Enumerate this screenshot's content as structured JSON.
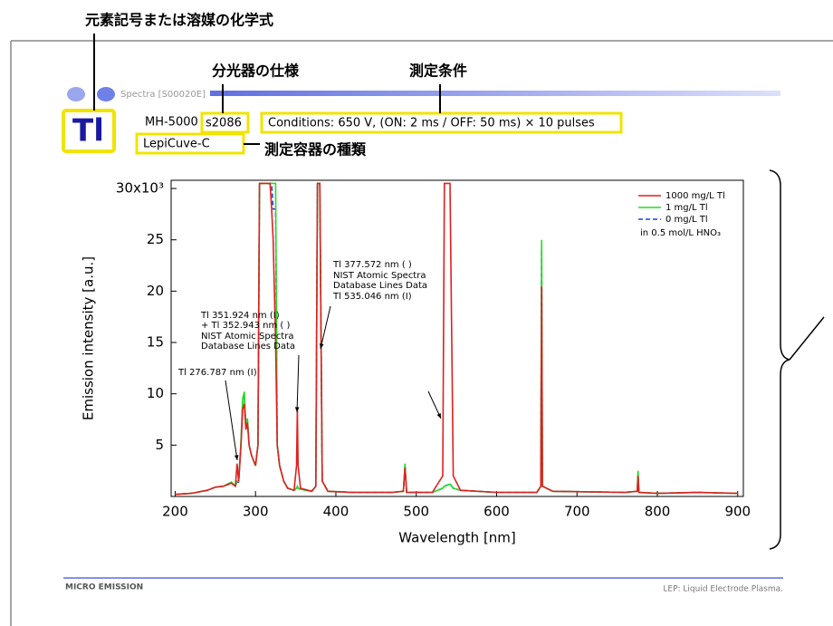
{
  "notes": {
    "element": "元素記号または溶媒の化学式",
    "spectrometer": "分光器の仕様",
    "conditions": "測定条件",
    "container": "測定容器の種類"
  },
  "header": {
    "series_id": "Spectra [S00020E]",
    "element": "Tl",
    "instrument": "MH-5000",
    "spectrometer": "s2086",
    "conditions": "Conditions: 650 V, (ON: 2 ms / OFF: 50 ms) × 10 pulses",
    "container": "LepiCuve-C"
  },
  "footer": {
    "brand": "MICRO EMISSION",
    "note": "LEP: Liquid Electrode Plasma."
  },
  "chart_data": {
    "type": "line",
    "x_label": "Wavelength [nm]",
    "y_label": "Emission intensity [a.u.]",
    "xlim": [
      195,
      907
    ],
    "ylim": [
      0,
      30.8
    ],
    "xticks": [
      200,
      300,
      400,
      500,
      600,
      700,
      800,
      900
    ],
    "yticks": [
      5,
      10,
      15,
      20,
      25,
      {
        "value": 30,
        "label": "30x10³"
      }
    ],
    "legend": "upper right",
    "legend_note": "in 0.5 mol/L HNO₃",
    "annotations": [
      "Tl 276.787 nm (I)",
      "Tl 351.924 nm (I)",
      "+ Tl 352.943 nm ( )",
      "NIST Atomic Spectra",
      "Database Lines Data",
      "Tl 377.572 nm ( )",
      "NIST Atomic Spectra",
      "Database Lines Data",
      "Tl 535.046 nm (I)"
    ],
    "x": [
      200,
      220,
      240,
      250,
      260,
      270,
      275,
      277,
      279,
      282,
      284,
      286,
      288,
      290,
      292,
      295,
      300,
      303,
      305,
      310,
      318,
      320,
      322,
      325,
      327,
      330,
      335,
      340,
      348,
      351,
      352,
      353,
      356,
      370,
      375,
      377,
      380,
      383,
      390,
      420,
      470,
      484,
      486,
      488,
      520,
      533,
      535,
      542,
      546,
      555,
      600,
      650,
      655,
      656,
      657,
      670,
      760,
      775,
      776,
      777,
      800,
      850,
      900
    ],
    "series": [
      {
        "name": "1000 mg/L Tl",
        "color": "#e02020",
        "linestyle": "solid",
        "values": [
          0.2,
          0.3,
          0.6,
          0.9,
          1.0,
          1.3,
          1.0,
          3.2,
          1.5,
          5,
          8.5,
          9,
          6.5,
          7.2,
          5,
          4,
          3,
          5,
          30.5,
          30.5,
          30.5,
          28,
          25,
          15,
          5,
          3,
          1.5,
          0.8,
          0.6,
          3,
          8.5,
          3,
          0.8,
          0.5,
          1,
          30.5,
          30.5,
          1.5,
          0.5,
          0.4,
          0.4,
          0.5,
          2.8,
          0.4,
          0.4,
          2,
          30.5,
          30.5,
          2,
          0.6,
          0.4,
          0.4,
          1,
          20.5,
          1,
          0.5,
          0.4,
          0.5,
          2.0,
          0.4,
          0.3,
          0.4,
          0.3
        ]
      },
      {
        "name": "1 mg/L Tl",
        "color": "#22dd22",
        "linestyle": "solid",
        "values": [
          0.2,
          0.3,
          0.6,
          0.9,
          1.0,
          1.4,
          1.0,
          1.5,
          1.5,
          5.5,
          9.5,
          10.2,
          7,
          7.6,
          5,
          4,
          3,
          5,
          30.5,
          30.5,
          30.5,
          30.5,
          30.5,
          30.5,
          5,
          3,
          1.5,
          0.8,
          0.6,
          0.8,
          1.0,
          0.8,
          0.7,
          0.5,
          1,
          30.5,
          30.5,
          1.5,
          0.5,
          0.4,
          0.4,
          0.5,
          3.2,
          0.4,
          0.4,
          0.8,
          1.0,
          1.2,
          0.8,
          0.6,
          0.4,
          0.4,
          1,
          25,
          1,
          0.5,
          0.4,
          0.5,
          2.5,
          0.4,
          0.3,
          0.4,
          0.3
        ]
      },
      {
        "name": "0 mg/L Tl",
        "color": "#2040e0",
        "linestyle": "dashed",
        "values": [
          0.2,
          0.3,
          0.6,
          0.9,
          1.0,
          1.3,
          1.0,
          1.4,
          1.4,
          5.3,
          9.2,
          9.8,
          6.8,
          7.4,
          5,
          4,
          3,
          5,
          30.5,
          30.5,
          30.5,
          30.5,
          28,
          28,
          5,
          3,
          1.5,
          0.8,
          0.6,
          0.8,
          1.0,
          0.8,
          0.7,
          0.5,
          1,
          30.5,
          30.5,
          1.5,
          0.5,
          0.4,
          0.4,
          0.5,
          3.0,
          0.4,
          0.4,
          0.8,
          1.0,
          1.2,
          0.8,
          0.6,
          0.4,
          0.4,
          1,
          24,
          1,
          0.5,
          0.4,
          0.5,
          2.3,
          0.4,
          0.3,
          0.4,
          0.3
        ]
      }
    ]
  }
}
